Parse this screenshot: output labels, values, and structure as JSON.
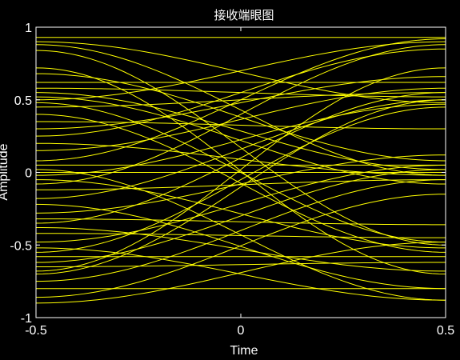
{
  "chart_data": {
    "type": "line",
    "title": "接收端眼图",
    "xlabel": "Time",
    "ylabel": "Amplitude",
    "xlim": [
      -0.5,
      0.5
    ],
    "ylim": [
      -1,
      1
    ],
    "xticks": [
      "-0.5",
      "0",
      "0.5"
    ],
    "yticks": [
      "-1",
      "-0.5",
      "0",
      "0.5",
      "1"
    ],
    "grid": false,
    "background_color": "#000000",
    "axis_color": "#ffffff",
    "trace_color": "#ffff00",
    "x": [
      -0.5,
      0.5
    ],
    "series": [
      {
        "values": [
          0.93,
          0.93
        ]
      },
      {
        "values": [
          0.88,
          -0.02
        ]
      },
      {
        "values": [
          0.9,
          0.48
        ]
      },
      {
        "values": [
          0.84,
          -0.5
        ]
      },
      {
        "values": [
          0.62,
          0.62
        ]
      },
      {
        "values": [
          0.55,
          0.02
        ]
      },
      {
        "values": [
          0.5,
          0.9
        ]
      },
      {
        "values": [
          0.48,
          -0.48
        ]
      },
      {
        "values": [
          0.68,
          0.08
        ]
      },
      {
        "values": [
          0.58,
          0.52
        ]
      },
      {
        "values": [
          0.52,
          -0.08
        ]
      },
      {
        "values": [
          0.45,
          0.55
        ]
      },
      {
        "values": [
          0.4,
          -0.55
        ]
      },
      {
        "values": [
          0.25,
          0.85
        ]
      },
      {
        "values": [
          0.2,
          -0.02
        ]
      },
      {
        "values": [
          0.15,
          0.58
        ]
      },
      {
        "values": [
          0.08,
          0.92
        ]
      },
      {
        "values": [
          0.05,
          0.05
        ]
      },
      {
        "values": [
          0.02,
          -0.88
        ]
      },
      {
        "values": [
          -0.02,
          0.47
        ]
      },
      {
        "values": [
          -0.05,
          -0.52
        ]
      },
      {
        "values": [
          -0.08,
          0.88
        ]
      },
      {
        "values": [
          -0.12,
          -0.05
        ]
      },
      {
        "values": [
          -0.18,
          0.5
        ]
      },
      {
        "values": [
          -0.22,
          -0.8
        ]
      },
      {
        "values": [
          -0.28,
          0.12
        ]
      },
      {
        "values": [
          -0.35,
          0.55
        ]
      },
      {
        "values": [
          -0.42,
          -0.45
        ]
      },
      {
        "values": [
          -0.48,
          0.05
        ]
      },
      {
        "values": [
          -0.52,
          -0.88
        ]
      },
      {
        "values": [
          -0.55,
          0.45
        ]
      },
      {
        "values": [
          -0.58,
          -0.58
        ]
      },
      {
        "values": [
          -0.62,
          0.02
        ]
      },
      {
        "values": [
          -0.65,
          -0.62
        ]
      },
      {
        "values": [
          -0.7,
          0.5
        ]
      },
      {
        "values": [
          -0.75,
          -0.05
        ]
      },
      {
        "values": [
          -0.8,
          -0.8
        ]
      },
      {
        "values": [
          -0.86,
          -0.15
        ]
      },
      {
        "values": [
          -0.9,
          -0.48
        ]
      },
      {
        "values": [
          0.35,
          0.3
        ]
      },
      {
        "values": [
          -0.32,
          -0.36
        ]
      },
      {
        "values": [
          0.0,
          0.0
        ]
      },
      {
        "values": [
          0.72,
          -0.7
        ]
      },
      {
        "values": [
          -0.68,
          0.72
        ]
      },
      {
        "values": [
          0.3,
          0.66
        ]
      },
      {
        "values": [
          -0.38,
          -0.68
        ]
      }
    ]
  }
}
